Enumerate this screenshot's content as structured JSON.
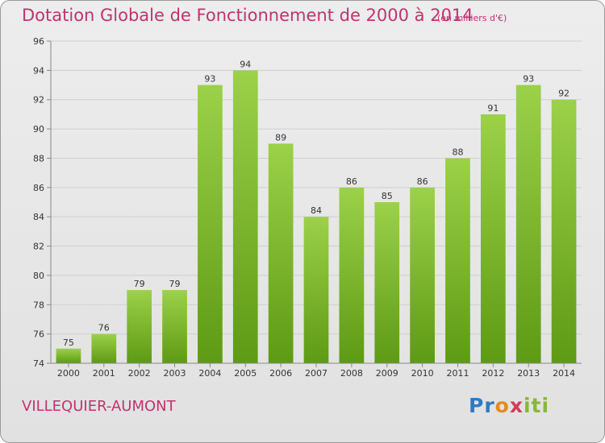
{
  "header": {
    "title": "Dotation Globale de Fonctionnement de 2000 à 2014",
    "subtitle": "(en milliers d'€)"
  },
  "footer": {
    "commune": "VILLEQUIER-AUMONT",
    "logo_text": "Proxiti"
  },
  "colors": {
    "accent": "#c0336f",
    "bar_top": "#9cd14a",
    "bar_bottom": "#5e9a14"
  },
  "chart_data": {
    "type": "bar",
    "title": "Dotation Globale de Fonctionnement de 2000 à 2014",
    "subtitle": "(en milliers d'€)",
    "xlabel": "",
    "ylabel": "",
    "categories": [
      "2000",
      "2001",
      "2002",
      "2003",
      "2004",
      "2005",
      "2006",
      "2007",
      "2008",
      "2009",
      "2010",
      "2011",
      "2012",
      "2013",
      "2014"
    ],
    "values": [
      75,
      76,
      79,
      79,
      93,
      94,
      89,
      84,
      86,
      85,
      86,
      88,
      91,
      93,
      92
    ],
    "ylim": [
      74,
      96
    ],
    "yticks": [
      74,
      76,
      78,
      80,
      82,
      84,
      86,
      88,
      90,
      92,
      94,
      96
    ],
    "grid": true
  }
}
